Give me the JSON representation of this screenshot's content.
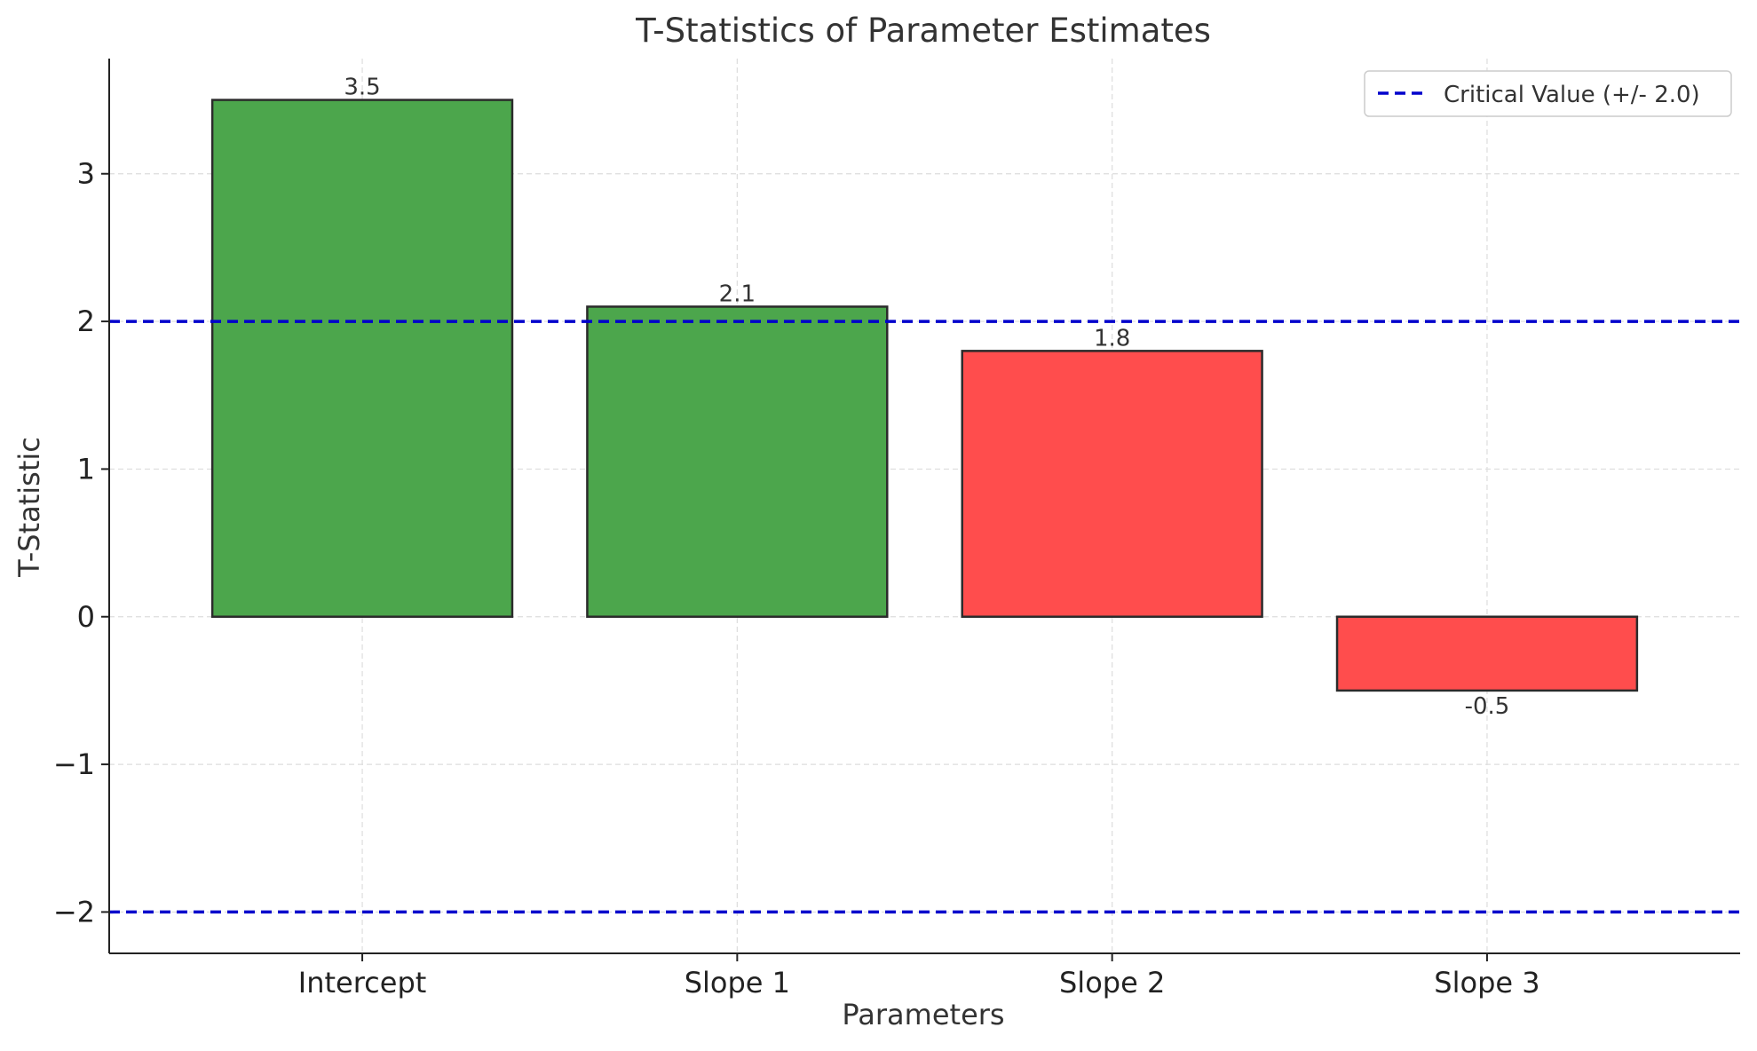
{
  "chart_data": {
    "type": "bar",
    "title": "T-Statistics of Parameter Estimates",
    "xlabel": "Parameters",
    "ylabel": "T-Statistic",
    "categories": [
      "Intercept",
      "Slope 1",
      "Slope 2",
      "Slope 3"
    ],
    "values": [
      3.5,
      2.1,
      1.8,
      -0.5
    ],
    "data_labels": [
      "3.5",
      "2.1",
      "1.8",
      "-0.5"
    ],
    "bar_colors": [
      "#4ca64c",
      "#4ca64c",
      "#ff4d4d",
      "#ff4d4d"
    ],
    "bar_edge_color": "#2b2b2b",
    "ylim": [
      -2.28,
      3.78
    ],
    "yticks": [
      -2,
      -1,
      0,
      1,
      2,
      3
    ],
    "ytick_labels": [
      "−2",
      "−1",
      "0",
      "1",
      "2",
      "3"
    ],
    "reference_lines": [
      {
        "y": 2.0,
        "color": "#0000cc",
        "style": "dashed"
      },
      {
        "y": -2.0,
        "color": "#0000cc",
        "style": "dashed"
      }
    ],
    "legend": {
      "placement": "top-right",
      "entries": [
        {
          "label": "Critical Value (+/- 2.0)",
          "color": "#0000cc",
          "style": "dashed"
        }
      ]
    },
    "grid": true,
    "grid_color": "#dddddd"
  }
}
